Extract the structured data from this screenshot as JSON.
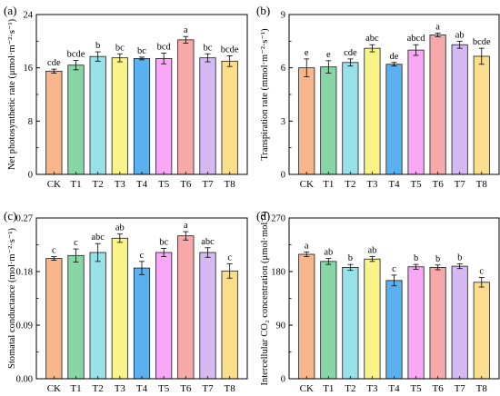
{
  "categories": [
    "CK",
    "T1",
    "T2",
    "T3",
    "T4",
    "T5",
    "T6",
    "T7",
    "T8"
  ],
  "colors": [
    "#f9b68a",
    "#88d6a5",
    "#98e0ea",
    "#f9f489",
    "#5ab1f0",
    "#f8a8f6",
    "#f7a9a9",
    "#d4b9f2",
    "#fbde8b"
  ],
  "chart_data": [
    {
      "type": "bar",
      "panel_label": "(a)",
      "ylabel": "Net photosynthetic rate (μmol·m⁻²·s⁻¹)",
      "ylim": [
        0,
        24
      ],
      "yticks": [
        "0",
        "8",
        "16",
        "24"
      ],
      "categories": [
        "CK",
        "T1",
        "T2",
        "T3",
        "T4",
        "T5",
        "T6",
        "T7",
        "T8"
      ],
      "values": [
        15.5,
        16.4,
        17.7,
        17.5,
        17.4,
        17.4,
        20.2,
        17.5,
        17.0
      ],
      "errors": [
        0.3,
        0.7,
        0.7,
        0.6,
        0.2,
        0.8,
        0.5,
        0.6,
        0.8
      ],
      "labels": [
        "cde",
        "bcde",
        "b",
        "bc",
        "bc",
        "bcd",
        "a",
        "bc",
        "bcde"
      ]
    },
    {
      "type": "bar",
      "panel_label": "(b)",
      "ylabel": "Transpiration rate (mmol·m⁻²·s⁻¹)",
      "ylim": [
        0,
        9
      ],
      "yticks": [
        "0",
        "3",
        "6",
        "9"
      ],
      "categories": [
        "CK",
        "T1",
        "T2",
        "T3",
        "T4",
        "T5",
        "T6",
        "T7",
        "T8"
      ],
      "values": [
        6.0,
        6.05,
        6.3,
        7.1,
        6.2,
        7.0,
        7.85,
        7.3,
        6.65
      ],
      "errors": [
        0.5,
        0.35,
        0.2,
        0.2,
        0.1,
        0.3,
        0.1,
        0.2,
        0.45
      ],
      "labels": [
        "e",
        "e",
        "cde",
        "abc",
        "de",
        "abcd",
        "a",
        "ab",
        "bcde"
      ]
    },
    {
      "type": "bar",
      "panel_label": "(c)",
      "ylabel": "Stomatal conductance (mol·m⁻²·s⁻¹)",
      "ylim": [
        0,
        0.27
      ],
      "yticks": [
        "0.00",
        "0.09",
        "0.18",
        "0.27"
      ],
      "categories": [
        "CK",
        "T1",
        "T2",
        "T3",
        "T4",
        "T5",
        "T6",
        "T7",
        "T8"
      ],
      "values": [
        0.202,
        0.207,
        0.212,
        0.236,
        0.186,
        0.212,
        0.24,
        0.212,
        0.181
      ],
      "errors": [
        0.003,
        0.011,
        0.015,
        0.007,
        0.011,
        0.007,
        0.007,
        0.008,
        0.012
      ],
      "labels": [
        "c",
        "c",
        "abc",
        "ab",
        "c",
        "bc",
        "a",
        "abc",
        "c"
      ]
    },
    {
      "type": "bar",
      "panel_label": "(d)",
      "ylabel": "Intercellular CO₂ concentration (μmol·mol⁻¹)",
      "ylim": [
        0,
        270
      ],
      "yticks": [
        "0",
        "90",
        "180",
        "270"
      ],
      "categories": [
        "CK",
        "T1",
        "T2",
        "T3",
        "T4",
        "T5",
        "T6",
        "T7",
        "T8"
      ],
      "values": [
        209,
        197,
        187,
        201,
        165,
        188,
        187,
        189,
        162
      ],
      "errors": [
        4,
        5,
        5,
        4,
        9,
        4,
        4,
        4,
        8
      ],
      "labels": [
        "a",
        "ab",
        "b",
        "ab",
        "c",
        "b",
        "b",
        "b",
        "c"
      ]
    }
  ]
}
